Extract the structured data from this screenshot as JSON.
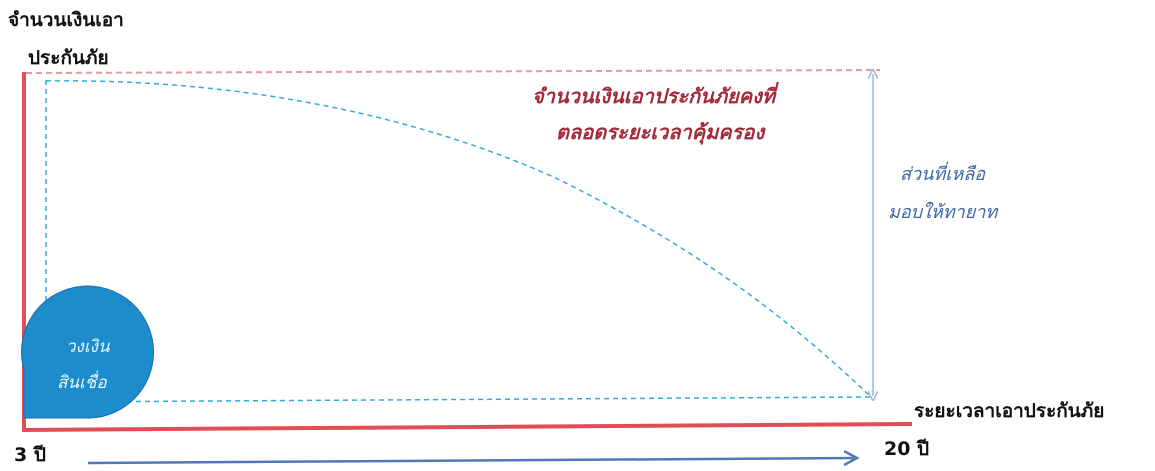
{
  "y_axis_label": {
    "line1": "จำนวนเงินเอา",
    "line2": "ประกันภัย"
  },
  "coverage_note": {
    "line1": "จำนวนเงินเอาประกันภัยคงที่",
    "line2": "ตลอดระยะเวลาคุ้มครอง"
  },
  "remainder_note": {
    "line1": "ส่วนที่เหลือ",
    "line2": "มอบให้ทายาท"
  },
  "loan_bubble": {
    "line1": "วงเงิน",
    "line2": "สินเชื่อ"
  },
  "x_axis_label": "ระยะเวลาเอาประกันภัย",
  "start_label": "3 ปี",
  "end_label": "20 ปี",
  "colors": {
    "axis": "#e14d55",
    "dashed_curve": "#35a9dd",
    "coverage_line": "#e59aa0",
    "bracket_arrow": "#9ab8d8",
    "timeline_arrow": "#4f79b8",
    "bubble_fill": "#1d8ccc",
    "coverage_text": "#a32a38",
    "remainder_text": "#3f66a8"
  }
}
